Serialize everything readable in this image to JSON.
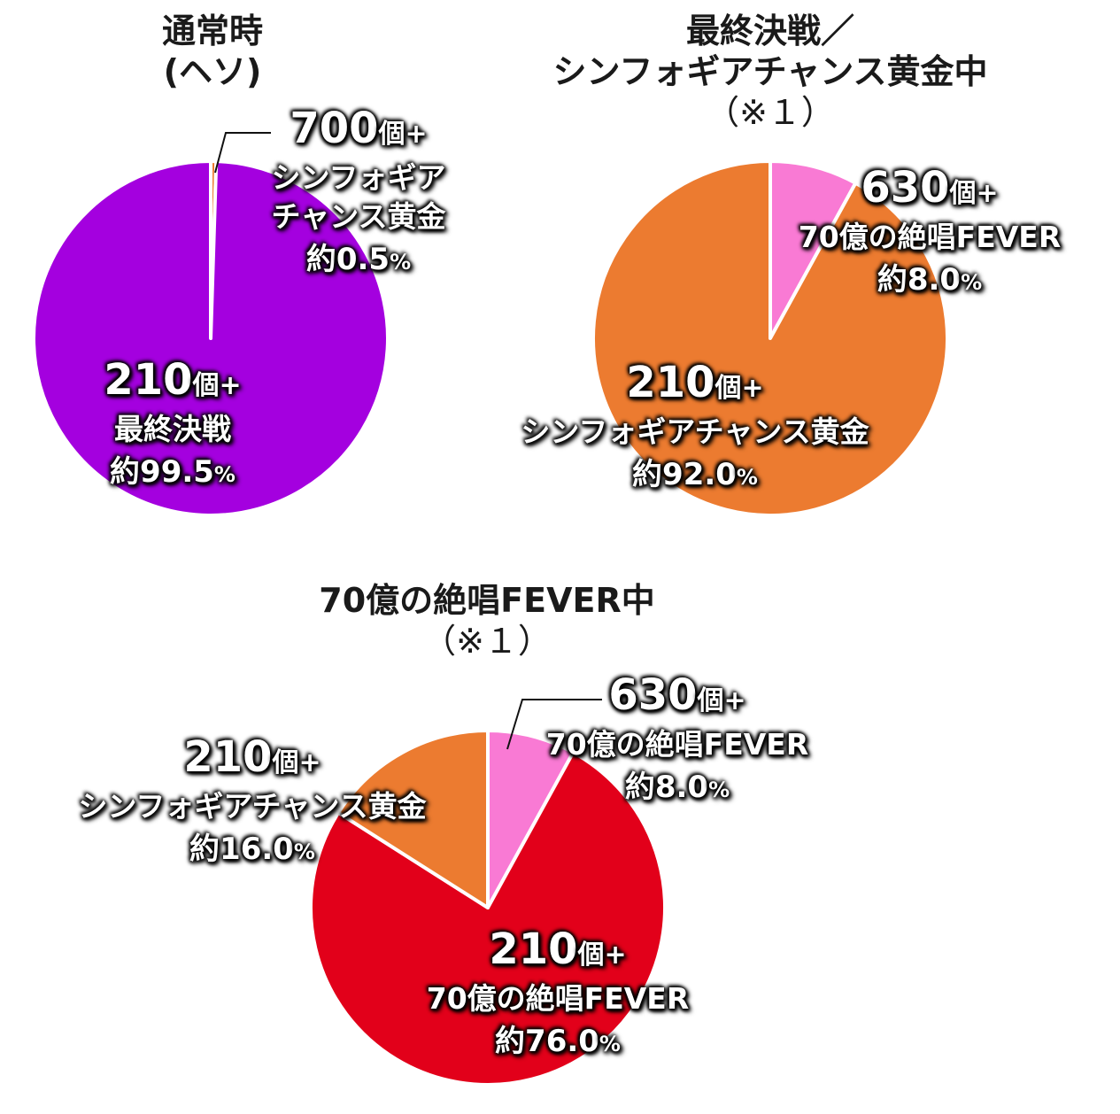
{
  "chart_data": [
    {
      "type": "pie",
      "title": [
        "通常時",
        "(ヘソ)"
      ],
      "slices": [
        {
          "count": "210",
          "unit": "個+",
          "name": "最終決戦",
          "pct_prefix": "約",
          "pct_value": "99.5",
          "pct_sign": "%",
          "value": 99.5,
          "color": "#a400df"
        },
        {
          "count": "700",
          "unit": "個+",
          "name": "シンフォギアチャンス黄金",
          "name_lines": [
            "シンフォギア",
            "チャンス黄金"
          ],
          "pct_prefix": "約",
          "pct_value": "0.5",
          "pct_sign": "%",
          "value": 0.5,
          "color": "#ec7b30"
        }
      ]
    },
    {
      "type": "pie",
      "title": [
        "最終決戦／",
        "シンフォギアチャンス黄金中",
        "（※１）"
      ],
      "slices": [
        {
          "count": "630",
          "unit": "個+",
          "name": "70億の絶唱FEVER",
          "pct_prefix": "約",
          "pct_value": "8.0",
          "pct_sign": "%",
          "value": 8.0,
          "color": "#f97ad4"
        },
        {
          "count": "210",
          "unit": "個+",
          "name": "シンフォギアチャンス黄金",
          "pct_prefix": "約",
          "pct_value": "92.0",
          "pct_sign": "%",
          "value": 92.0,
          "color": "#ec7b30"
        }
      ]
    },
    {
      "type": "pie",
      "title": [
        "70億の絶唱FEVER中",
        "（※１）"
      ],
      "slices": [
        {
          "count": "630",
          "unit": "個+",
          "name": "70億の絶唱FEVER",
          "pct_prefix": "約",
          "pct_value": "8.0",
          "pct_sign": "%",
          "value": 8.0,
          "color": "#f97ad4"
        },
        {
          "count": "210",
          "unit": "個+",
          "name": "70億の絶唱FEVER",
          "pct_prefix": "約",
          "pct_value": "76.0",
          "pct_sign": "%",
          "value": 76.0,
          "color": "#e2001a"
        },
        {
          "count": "210",
          "unit": "個+",
          "name": "シンフォギアチャンス黄金",
          "pct_prefix": "約",
          "pct_value": "16.0",
          "pct_sign": "%",
          "value": 16.0,
          "color": "#ec7b30"
        }
      ]
    }
  ]
}
